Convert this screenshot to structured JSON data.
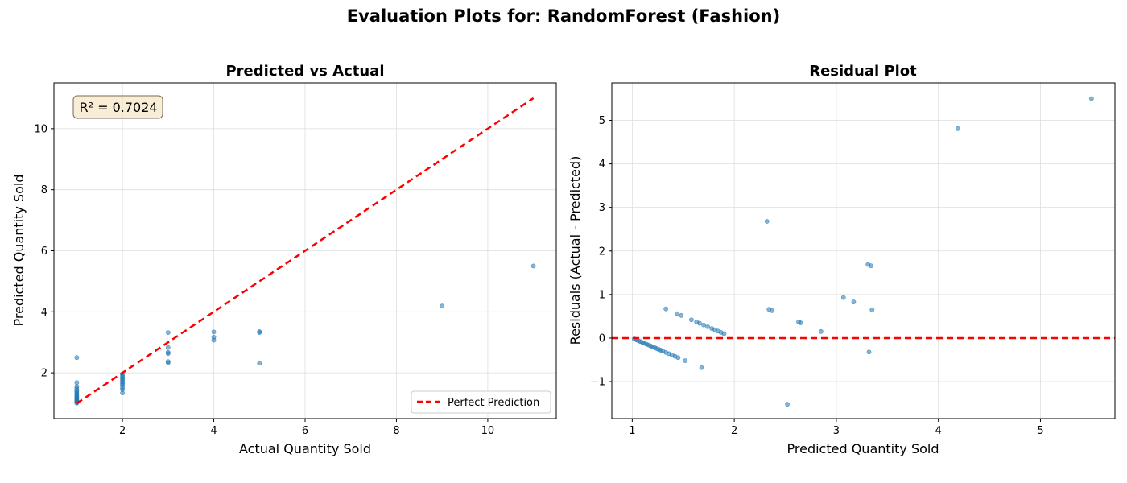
{
  "figure": {
    "suptitle": "Evaluation Plots for: RandomForest (Fashion)"
  },
  "chart_data": [
    {
      "type": "scatter",
      "title": "Predicted vs Actual",
      "xlabel": "Actual Quantity Sold",
      "ylabel": "Predicted Quantity Sold",
      "xlim": [
        0.5,
        11.5
      ],
      "ylim": [
        0.5,
        11.5
      ],
      "xticks": [
        2,
        4,
        6,
        8,
        10
      ],
      "yticks": [
        2,
        4,
        6,
        8,
        10
      ],
      "grid": true,
      "annotation": "R² = 0.7024",
      "legend_position": "lower right",
      "point_color": "#1f77b4",
      "line_color": "#ff0000",
      "series": [
        {
          "name": "",
          "points": [
            [
              1,
              2.5
            ],
            [
              1,
              1.68
            ],
            [
              1,
              1.55
            ],
            [
              1,
              1.48
            ],
            [
              1,
              1.42
            ],
            [
              1,
              1.38
            ],
            [
              1,
              1.33
            ],
            [
              1,
              1.29
            ],
            [
              1,
              1.25
            ],
            [
              1,
              1.21
            ],
            [
              1,
              1.18
            ],
            [
              1,
              1.15
            ],
            [
              1,
              1.12
            ],
            [
              1,
              1.09
            ],
            [
              1,
              1.06
            ],
            [
              1,
              1.03
            ],
            [
              1,
              1.01
            ],
            [
              2,
              1.96
            ],
            [
              2,
              1.9
            ],
            [
              2,
              1.85
            ],
            [
              2,
              1.8
            ],
            [
              2,
              1.75
            ],
            [
              2,
              1.7
            ],
            [
              2,
              1.65
            ],
            [
              2,
              1.6
            ],
            [
              2,
              1.52
            ],
            [
              2,
              1.45
            ],
            [
              2,
              1.34
            ],
            [
              3,
              3.32
            ],
            [
              3,
              2.83
            ],
            [
              3,
              2.67
            ],
            [
              3,
              2.63
            ],
            [
              3,
              2.37
            ],
            [
              3,
              2.33
            ],
            [
              4,
              3.34
            ],
            [
              4,
              3.17
            ],
            [
              4,
              3.07
            ],
            [
              5,
              3.35
            ],
            [
              5,
              3.32
            ],
            [
              5,
              2.31
            ],
            [
              9,
              4.19
            ],
            [
              11,
              5.5
            ]
          ]
        },
        {
          "name": "Perfect Prediction",
          "line": [
            [
              1,
              1
            ],
            [
              11,
              11
            ]
          ]
        }
      ]
    },
    {
      "type": "scatter",
      "title": "Residual Plot",
      "xlabel": "Predicted Quantity Sold",
      "ylabel": "Residuals (Actual - Predicted)",
      "xlim": [
        0.8,
        5.73
      ],
      "ylim": [
        -1.85,
        5.86
      ],
      "xticks": [
        1,
        2,
        3,
        4,
        5
      ],
      "yticks": [
        -1,
        0,
        1,
        2,
        3,
        4,
        5
      ],
      "grid": true,
      "point_color": "#1f77b4",
      "line_color": "#ff0000",
      "hline_y": 0,
      "series": [
        {
          "name": "",
          "points": [
            [
              1.02,
              -0.02
            ],
            [
              1.04,
              -0.04
            ],
            [
              1.06,
              -0.06
            ],
            [
              1.08,
              -0.08
            ],
            [
              1.1,
              -0.1
            ],
            [
              1.12,
              -0.12
            ],
            [
              1.14,
              -0.14
            ],
            [
              1.16,
              -0.16
            ],
            [
              1.18,
              -0.18
            ],
            [
              1.2,
              -0.2
            ],
            [
              1.22,
              -0.22
            ],
            [
              1.24,
              -0.24
            ],
            [
              1.26,
              -0.26
            ],
            [
              1.28,
              -0.28
            ],
            [
              1.3,
              -0.3
            ],
            [
              1.33,
              -0.33
            ],
            [
              1.36,
              -0.36
            ],
            [
              1.39,
              -0.39
            ],
            [
              1.42,
              -0.42
            ],
            [
              1.45,
              -0.45
            ],
            [
              1.52,
              -0.52
            ],
            [
              1.68,
              -0.68
            ],
            [
              1.33,
              0.67
            ],
            [
              1.44,
              0.56
            ],
            [
              1.48,
              0.52
            ],
            [
              1.58,
              0.42
            ],
            [
              1.63,
              0.37
            ],
            [
              1.66,
              0.34
            ],
            [
              1.7,
              0.3
            ],
            [
              1.74,
              0.26
            ],
            [
              1.78,
              0.22
            ],
            [
              1.81,
              0.19
            ],
            [
              1.84,
              0.16
            ],
            [
              1.87,
              0.13
            ],
            [
              1.9,
              0.1
            ],
            [
              2.32,
              2.68
            ],
            [
              2.34,
              0.66
            ],
            [
              2.37,
              0.63
            ],
            [
              2.63,
              0.37
            ],
            [
              2.65,
              0.35
            ],
            [
              2.85,
              0.15
            ],
            [
              3.07,
              0.93
            ],
            [
              3.17,
              0.83
            ],
            [
              3.31,
              1.69
            ],
            [
              3.34,
              1.66
            ],
            [
              3.32,
              -0.32
            ],
            [
              3.35,
              0.65
            ],
            [
              2.52,
              -1.52
            ],
            [
              4.19,
              4.81
            ],
            [
              5.5,
              5.5
            ]
          ]
        }
      ]
    }
  ]
}
